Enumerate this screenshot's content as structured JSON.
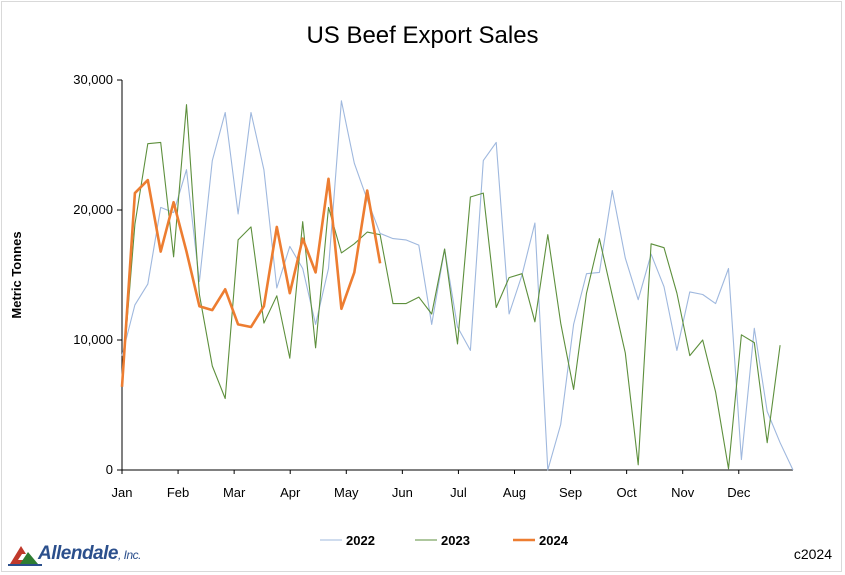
{
  "chart_data": {
    "type": "line",
    "title": "US Beef Export Sales",
    "ylabel": "Metric Tonnes",
    "xlabel": "",
    "ylim": [
      0,
      30000
    ],
    "yticks": [
      0,
      10000,
      20000,
      30000
    ],
    "ytick_labels": [
      "0",
      "10,000",
      "20,000",
      "30,000"
    ],
    "xticks": [
      "Jan",
      "Feb",
      "Mar",
      "Apr",
      "May",
      "Jun",
      "Jul",
      "Aug",
      "Sep",
      "Oct",
      "Nov",
      "Dec"
    ],
    "x_unit": "week of year",
    "xlim": [
      1,
      53
    ],
    "grid": false,
    "legend_position": "bottom",
    "series": [
      {
        "name": "2022",
        "color": "#9fb8de",
        "width": 1.1,
        "values": [
          8800,
          12700,
          14300,
          20200,
          19800,
          23100,
          14500,
          23800,
          27500,
          19700,
          27500,
          23100,
          14000,
          17200,
          15500,
          11200,
          15500,
          28400,
          23600,
          20800,
          18200,
          17800,
          17700,
          17300,
          11200,
          17000,
          11000,
          9200,
          23800,
          25200,
          12000,
          15000,
          19000,
          0,
          3500,
          11200,
          15100,
          15200,
          21500,
          16300,
          13100,
          16600,
          14100,
          9200,
          13700,
          13500,
          12800,
          15500,
          800,
          10900,
          4500,
          2100,
          0
        ]
      },
      {
        "name": "2023",
        "color": "#5d8f3c",
        "width": 1.1,
        "values": [
          6700,
          18900,
          25100,
          25200,
          16400,
          28100,
          13500,
          8000,
          5500,
          17700,
          18700,
          11300,
          13400,
          8600,
          19100,
          9400,
          20200,
          16700,
          17400,
          18300,
          18100,
          12800,
          12800,
          13300,
          12000,
          17000,
          9700,
          21000,
          21300,
          12500,
          14800,
          15100,
          11400,
          18100,
          11300,
          6200,
          13600,
          17800,
          13400,
          9000,
          400,
          17400,
          17100,
          13600,
          8800,
          10000,
          6000,
          100,
          10400,
          9800,
          2100,
          9600
        ]
      },
      {
        "name": "2024",
        "color": "#ed7d31",
        "width": 2.6,
        "values": [
          6400,
          21300,
          22300,
          16800,
          20600,
          16800,
          12600,
          12300,
          13900,
          11200,
          11000,
          12600,
          18700,
          13600,
          17800,
          15200,
          22400,
          12400,
          15200,
          21500,
          15900
        ]
      }
    ]
  },
  "footer": {
    "copyright": "c2024",
    "logo_text": "Allendale",
    "logo_suffix": ", Inc."
  }
}
